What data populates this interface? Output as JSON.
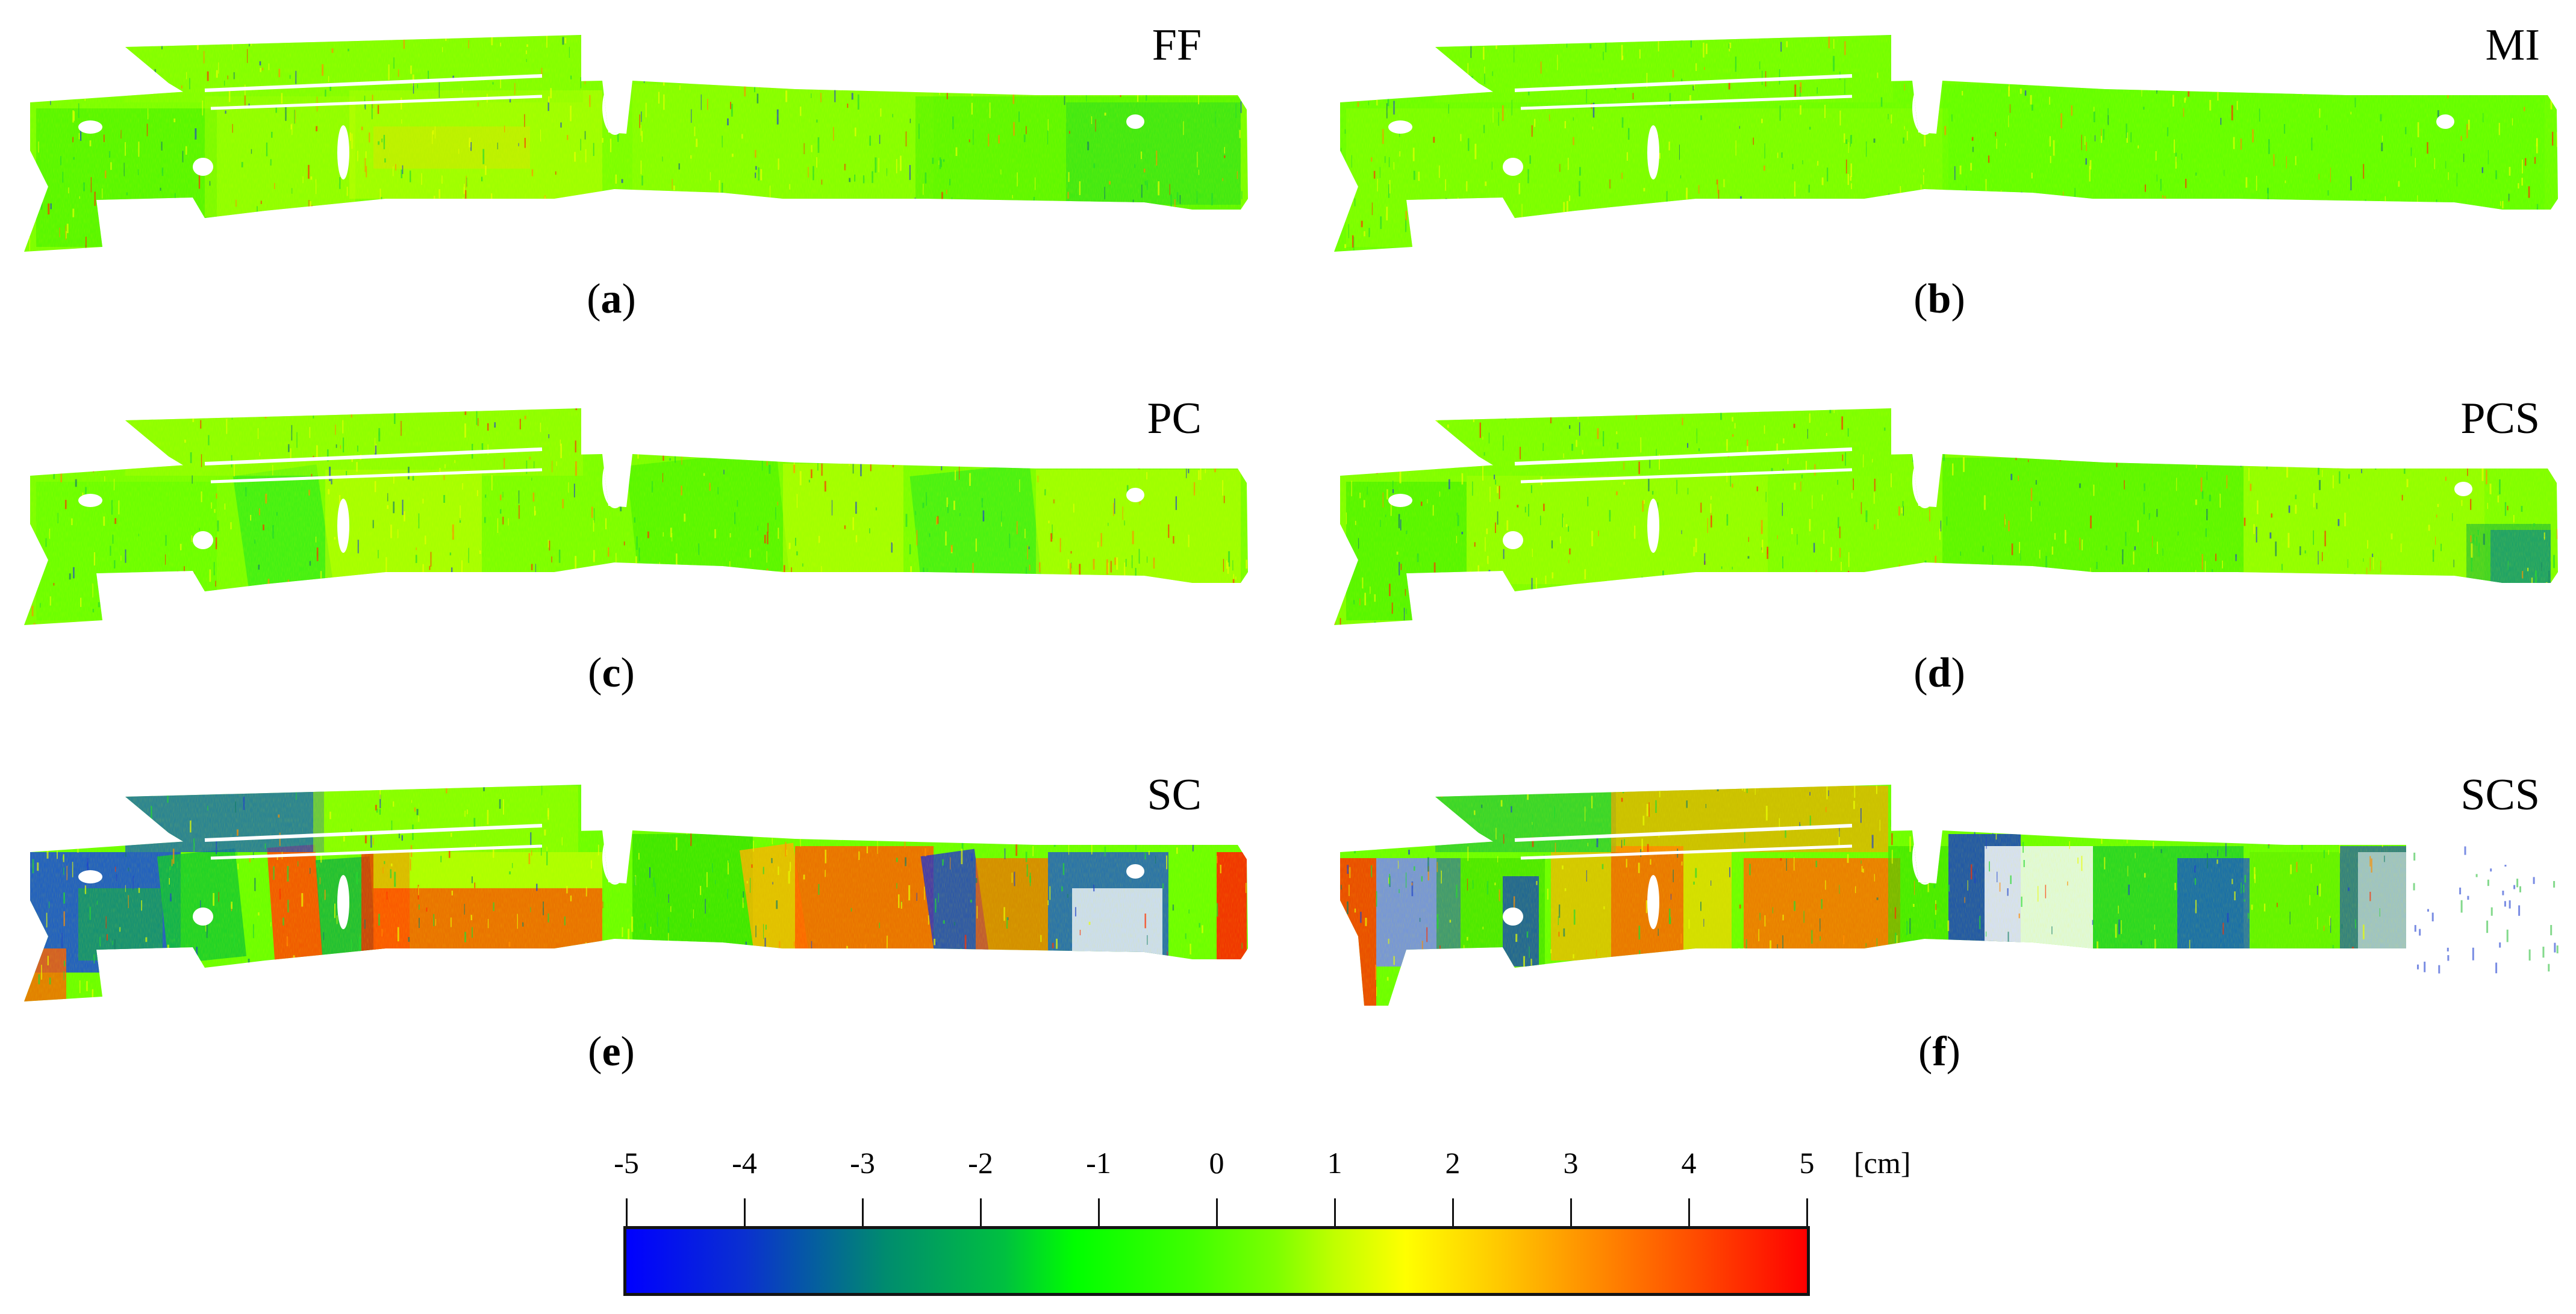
{
  "figure": {
    "panels": [
      {
        "id": "a",
        "method": "FF",
        "caption_letter": "a",
        "col": 0,
        "row": 0
      },
      {
        "id": "b",
        "method": "MI",
        "caption_letter": "b",
        "col": 1,
        "row": 0
      },
      {
        "id": "c",
        "method": "PC",
        "caption_letter": "c",
        "col": 0,
        "row": 1
      },
      {
        "id": "d",
        "method": "PCS",
        "caption_letter": "d",
        "col": 1,
        "row": 1
      },
      {
        "id": "e",
        "method": "SC",
        "caption_letter": "e",
        "col": 0,
        "row": 2
      },
      {
        "id": "f",
        "method": "SCS",
        "caption_letter": "f",
        "col": 1,
        "row": 2
      }
    ],
    "colorbar": {
      "ticks": [
        "-5",
        "-4",
        "-3",
        "-2",
        "-1",
        "0",
        "1",
        "2",
        "3",
        "4",
        "5"
      ],
      "unit": "[cm]",
      "colors": {
        "min": "#0000ff",
        "low": "#008c6e",
        "mid_low": "#00ff00",
        "mid": "#7cff00",
        "mid_high": "#ffff00",
        "high": "#ff8c00",
        "max": "#ff0000"
      }
    }
  },
  "chart_data": {
    "type": "heatmap",
    "title": "",
    "description": "Six deviation maps of a wall point cloud comparing registration methods, colored by deviation in cm",
    "panels": [
      {
        "label": "(a)",
        "method": "FF",
        "dominant_range_cm": [
          -1,
          2
        ],
        "summary": "mostly green/yellow-green, small red and blue speckles"
      },
      {
        "label": "(b)",
        "method": "MI",
        "dominant_range_cm": [
          -1,
          1.5
        ],
        "summary": "mostly green, very uniform"
      },
      {
        "label": "(c)",
        "method": "PC",
        "dominant_range_cm": [
          -1.5,
          2
        ],
        "summary": "green with yellow bands, slight banding"
      },
      {
        "label": "(d)",
        "method": "PCS",
        "dominant_range_cm": [
          -2,
          2
        ],
        "summary": "green/yellow, blue patch on right end"
      },
      {
        "label": "(e)",
        "method": "SC",
        "dominant_range_cm": [
          -5,
          5
        ],
        "summary": "strong blue at left, red/orange in center, blue/red mixed right"
      },
      {
        "label": "(f)",
        "method": "SCS",
        "dominant_range_cm": [
          -5,
          5
        ],
        "summary": "blue at left and center-right, orange/red center, right end truncated"
      }
    ],
    "colorbar": {
      "min": -5,
      "max": 5,
      "unit": "cm",
      "ticks": [
        -5,
        -4,
        -3,
        -2,
        -1,
        0,
        1,
        2,
        3,
        4,
        5
      ],
      "colormap": [
        "#0000ff",
        "#008c6e",
        "#00ff00",
        "#7cff00",
        "#ffff00",
        "#ff8c00",
        "#ff0000"
      ]
    },
    "xlabel": "",
    "ylabel": ""
  }
}
